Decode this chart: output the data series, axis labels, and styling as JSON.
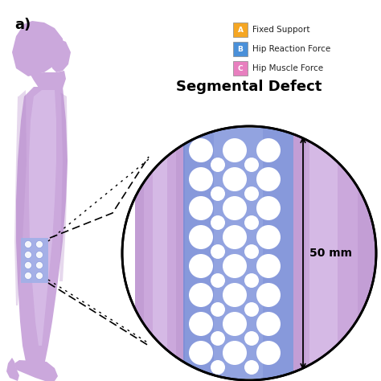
{
  "title_label": "a)",
  "legend_items": [
    {
      "label": "A",
      "text": "Fixed Support",
      "color": "#F5A623"
    },
    {
      "label": "B",
      "text": "Hip Reaction Force",
      "color": "#4A90D9"
    },
    {
      "label": "C",
      "text": "Hip Muscle Force",
      "color": "#E87FBF"
    }
  ],
  "segmental_defect_title": "Segmental Defect",
  "dimension_label": "50 mm",
  "bone_color": "#CBA8DC",
  "bone_highlight": "#DEC8EE",
  "bone_shadow": "#B890CC",
  "scaffold_color": "#7A8ED8",
  "scaffold_light": "#A0B0E8",
  "background_color": "#FFFFFF"
}
